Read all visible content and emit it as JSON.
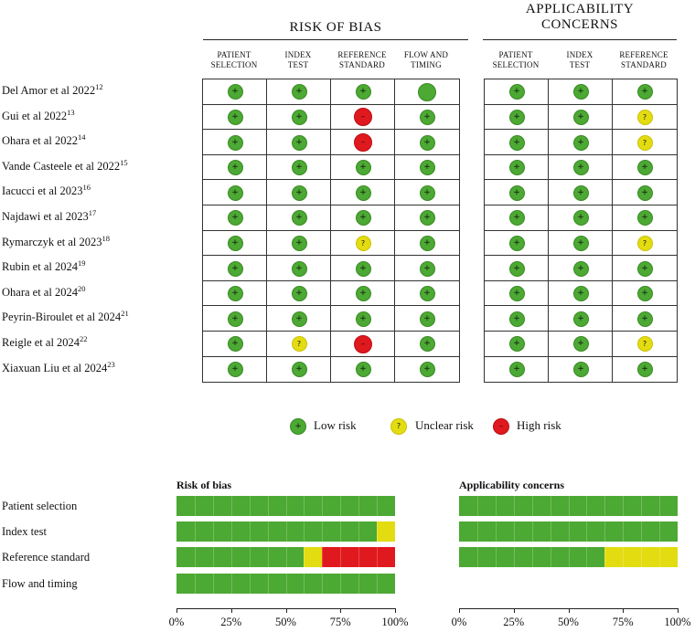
{
  "headers": {
    "risk_of_bias": "RISK OF BIAS",
    "applicability": [
      "APPLICABILITY",
      "CONCERNS"
    ]
  },
  "rob_columns": [
    [
      "PATIENT",
      "SELECTION"
    ],
    [
      "INDEX",
      "TEST"
    ],
    [
      "REFERENCE",
      "STANDARD"
    ],
    [
      "FLOW AND",
      "TIMING"
    ]
  ],
  "app_columns": [
    [
      "PATIENT",
      "SELECTION"
    ],
    [
      "INDEX",
      "TEST"
    ],
    [
      "REFERENCE",
      "STANDARD"
    ]
  ],
  "symbols": {
    "low": "+",
    "unclear": "?",
    "high": "–"
  },
  "studies": [
    {
      "name": "Del Amor et al 2022",
      "ref": "12",
      "rob": [
        "low",
        "low",
        "low",
        "low"
      ],
      "app": [
        "low",
        "low",
        "low"
      ]
    },
    {
      "name": "Gui et al 2022",
      "ref": "13",
      "rob": [
        "low",
        "low",
        "high",
        "low"
      ],
      "app": [
        "low",
        "low",
        "unclear"
      ]
    },
    {
      "name": "Ohara et al 2022",
      "ref": "14",
      "rob": [
        "low",
        "low",
        "high",
        "low"
      ],
      "app": [
        "low",
        "low",
        "unclear"
      ]
    },
    {
      "name": "Vande Casteele et al 2022",
      "ref": "15",
      "rob": [
        "low",
        "low",
        "low",
        "low"
      ],
      "app": [
        "low",
        "low",
        "low"
      ]
    },
    {
      "name": "Iacucci et al 2023",
      "ref": "16",
      "rob": [
        "low",
        "low",
        "low",
        "low"
      ],
      "app": [
        "low",
        "low",
        "low"
      ]
    },
    {
      "name": "Najdawi et al 2023",
      "ref": "17",
      "rob": [
        "low",
        "low",
        "low",
        "low"
      ],
      "app": [
        "low",
        "low",
        "low"
      ]
    },
    {
      "name": "Rymarczyk et al 2023",
      "ref": "18",
      "rob": [
        "low",
        "low",
        "unclear",
        "low"
      ],
      "app": [
        "low",
        "low",
        "unclear"
      ]
    },
    {
      "name": "Rubin et al 2024",
      "ref": "19",
      "rob": [
        "low",
        "low",
        "low",
        "low"
      ],
      "app": [
        "low",
        "low",
        "low"
      ]
    },
    {
      "name": "Ohara et al 2024",
      "ref": "20",
      "rob": [
        "low",
        "low",
        "low",
        "low"
      ],
      "app": [
        "low",
        "low",
        "low"
      ]
    },
    {
      "name": "Peyrin-Biroulet et al 2024",
      "ref": "21",
      "rob": [
        "low",
        "low",
        "low",
        "low"
      ],
      "app": [
        "low",
        "low",
        "low"
      ]
    },
    {
      "name": "Reigle et al 2024",
      "ref": "22",
      "rob": [
        "low",
        "unclear",
        "high",
        "low"
      ],
      "app": [
        "low",
        "low",
        "unclear"
      ]
    },
    {
      "name": "Xiaxuan Liu et al 2024",
      "ref": "23",
      "rob": [
        "low",
        "low",
        "low",
        "low"
      ],
      "app": [
        "low",
        "low",
        "low"
      ]
    }
  ],
  "legend": [
    {
      "key": "low",
      "label": "Low risk"
    },
    {
      "key": "unclear",
      "label": "Unclear risk"
    },
    {
      "key": "high",
      "label": "High risk"
    }
  ],
  "colors": {
    "low": "#4ca933",
    "unclear": "#e3dc10",
    "high": "#e0191f"
  },
  "chart_data": [
    {
      "type": "bar",
      "orientation": "horizontal-stacked",
      "title": "Risk of bias",
      "categories": [
        "Patient selection",
        "Index test",
        "Reference standard",
        "Flow and timing"
      ],
      "series": [
        {
          "name": "Low risk",
          "values": [
            100,
            91.7,
            58.3,
            100
          ]
        },
        {
          "name": "Unclear risk",
          "values": [
            0,
            8.3,
            8.3,
            0
          ]
        },
        {
          "name": "High risk",
          "values": [
            0,
            0,
            33.3,
            0
          ]
        }
      ],
      "xlim": [
        0,
        100
      ],
      "xticks": [
        "0%",
        "25%",
        "50%",
        "75%",
        "100%"
      ]
    },
    {
      "type": "bar",
      "orientation": "horizontal-stacked",
      "title": "Applicability concerns",
      "categories": [
        "Patient selection",
        "Index test",
        "Reference standard"
      ],
      "series": [
        {
          "name": "Low risk",
          "values": [
            100,
            100,
            66.7
          ]
        },
        {
          "name": "Unclear risk",
          "values": [
            0,
            0,
            33.3
          ]
        },
        {
          "name": "High risk",
          "values": [
            0,
            0,
            0
          ]
        }
      ],
      "xlim": [
        0,
        100
      ],
      "xticks": [
        "0%",
        "25%",
        "50%",
        "75%",
        "100%"
      ]
    }
  ]
}
